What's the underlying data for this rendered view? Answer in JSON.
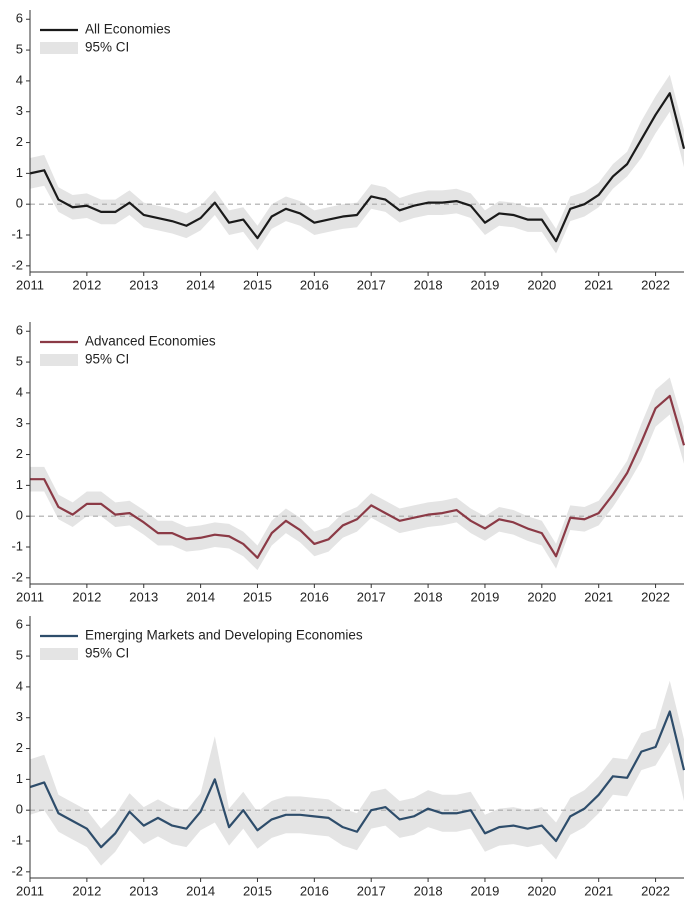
{
  "chart_data": [
    {
      "type": "line",
      "x": [
        2011,
        2011.25,
        2011.5,
        2011.75,
        2012,
        2012.25,
        2012.5,
        2012.75,
        2013,
        2013.25,
        2013.5,
        2013.75,
        2014,
        2014.25,
        2014.5,
        2014.75,
        2015,
        2015.25,
        2015.5,
        2015.75,
        2016,
        2016.25,
        2016.5,
        2016.75,
        2017,
        2017.25,
        2017.5,
        2017.75,
        2018,
        2018.25,
        2018.5,
        2018.75,
        2019,
        2019.25,
        2019.5,
        2019.75,
        2020,
        2020.25,
        2020.5,
        2020.75,
        2021,
        2021.25,
        2021.5,
        2021.75,
        2022,
        2022.25,
        2022.5
      ],
      "xlim": [
        2011,
        2022.5
      ],
      "xticks": [
        2011,
        2012,
        2013,
        2014,
        2015,
        2016,
        2017,
        2018,
        2019,
        2020,
        2021,
        2022
      ],
      "ylim": [
        -2.2,
        6.3
      ],
      "yticks": [
        -2,
        -1,
        0,
        1,
        2,
        3,
        4,
        5,
        6
      ],
      "reference_line": 0,
      "ci_label": "95% CI",
      "ci_color": "#e4e4e4",
      "series": [
        {
          "name": "All Economies",
          "color": "#1a1a1a",
          "values": [
            1.0,
            1.1,
            0.15,
            -0.1,
            -0.05,
            -0.25,
            -0.25,
            0.05,
            -0.35,
            -0.45,
            -0.55,
            -0.7,
            -0.45,
            0.05,
            -0.6,
            -0.5,
            -1.1,
            -0.4,
            -0.15,
            -0.3,
            -0.6,
            -0.5,
            -0.4,
            -0.35,
            0.25,
            0.15,
            -0.2,
            -0.05,
            0.05,
            0.05,
            0.1,
            -0.05,
            -0.6,
            -0.3,
            -0.35,
            -0.5,
            -0.5,
            -1.2,
            -0.15,
            0.0,
            0.3,
            0.9,
            1.3,
            2.1,
            2.9,
            3.6,
            1.8
          ],
          "lower": [
            0.5,
            0.6,
            -0.25,
            -0.5,
            -0.45,
            -0.65,
            -0.65,
            -0.35,
            -0.75,
            -0.85,
            -0.95,
            -1.1,
            -0.85,
            -0.35,
            -1.0,
            -0.9,
            -1.5,
            -0.8,
            -0.55,
            -0.7,
            -1.0,
            -0.9,
            -0.8,
            -0.75,
            -0.15,
            -0.25,
            -0.6,
            -0.45,
            -0.35,
            -0.35,
            -0.3,
            -0.45,
            -1.0,
            -0.7,
            -0.75,
            -0.9,
            -0.9,
            -1.6,
            -0.55,
            -0.4,
            -0.1,
            0.5,
            0.9,
            1.5,
            2.3,
            3.0,
            1.2
          ],
          "upper": [
            1.5,
            1.6,
            0.55,
            0.3,
            0.35,
            0.15,
            0.15,
            0.45,
            0.05,
            -0.05,
            -0.15,
            -0.3,
            -0.05,
            0.45,
            -0.2,
            -0.1,
            -0.7,
            0.0,
            0.25,
            0.1,
            -0.2,
            -0.1,
            0.0,
            0.05,
            0.65,
            0.55,
            0.2,
            0.35,
            0.45,
            0.45,
            0.5,
            0.35,
            -0.2,
            0.1,
            0.05,
            -0.1,
            -0.1,
            -0.8,
            0.25,
            0.4,
            0.7,
            1.3,
            1.7,
            2.7,
            3.5,
            4.2,
            2.4
          ]
        }
      ]
    },
    {
      "type": "line",
      "x": [
        2011,
        2011.25,
        2011.5,
        2011.75,
        2012,
        2012.25,
        2012.5,
        2012.75,
        2013,
        2013.25,
        2013.5,
        2013.75,
        2014,
        2014.25,
        2014.5,
        2014.75,
        2015,
        2015.25,
        2015.5,
        2015.75,
        2016,
        2016.25,
        2016.5,
        2016.75,
        2017,
        2017.25,
        2017.5,
        2017.75,
        2018,
        2018.25,
        2018.5,
        2018.75,
        2019,
        2019.25,
        2019.5,
        2019.75,
        2020,
        2020.25,
        2020.5,
        2020.75,
        2021,
        2021.25,
        2021.5,
        2021.75,
        2022,
        2022.25,
        2022.5
      ],
      "xlim": [
        2011,
        2022.5
      ],
      "xticks": [
        2011,
        2012,
        2013,
        2014,
        2015,
        2016,
        2017,
        2018,
        2019,
        2020,
        2021,
        2022
      ],
      "ylim": [
        -2.2,
        6.3
      ],
      "yticks": [
        -2,
        -1,
        0,
        1,
        2,
        3,
        4,
        5,
        6
      ],
      "reference_line": 0,
      "ci_label": "95% CI",
      "ci_color": "#e4e4e4",
      "series": [
        {
          "name": "Advanced Economies",
          "color": "#8b3a46",
          "values": [
            1.2,
            1.2,
            0.3,
            0.05,
            0.4,
            0.4,
            0.05,
            0.1,
            -0.2,
            -0.55,
            -0.55,
            -0.75,
            -0.7,
            -0.6,
            -0.65,
            -0.9,
            -1.35,
            -0.55,
            -0.15,
            -0.45,
            -0.9,
            -0.75,
            -0.3,
            -0.1,
            0.35,
            0.1,
            -0.15,
            -0.05,
            0.05,
            0.1,
            0.2,
            -0.15,
            -0.4,
            -0.1,
            -0.2,
            -0.4,
            -0.55,
            -1.3,
            -0.05,
            -0.1,
            0.1,
            0.7,
            1.4,
            2.4,
            3.5,
            3.9,
            2.3
          ],
          "lower": [
            0.8,
            0.8,
            -0.1,
            -0.35,
            0.0,
            0.0,
            -0.35,
            -0.3,
            -0.6,
            -0.95,
            -0.95,
            -1.15,
            -1.1,
            -1.0,
            -1.05,
            -1.3,
            -1.75,
            -0.95,
            -0.55,
            -0.85,
            -1.3,
            -1.15,
            -0.7,
            -0.5,
            -0.05,
            -0.3,
            -0.55,
            -0.45,
            -0.35,
            -0.3,
            -0.2,
            -0.55,
            -0.8,
            -0.5,
            -0.6,
            -0.8,
            -0.95,
            -1.7,
            -0.45,
            -0.5,
            -0.3,
            0.3,
            1.0,
            1.8,
            2.9,
            3.3,
            1.7
          ],
          "upper": [
            1.6,
            1.6,
            0.7,
            0.45,
            0.8,
            0.8,
            0.45,
            0.5,
            0.2,
            -0.15,
            -0.15,
            -0.35,
            -0.3,
            -0.2,
            -0.25,
            -0.5,
            -0.95,
            -0.15,
            0.25,
            -0.05,
            -0.5,
            -0.35,
            0.1,
            0.3,
            0.75,
            0.5,
            0.25,
            0.35,
            0.45,
            0.5,
            0.6,
            0.25,
            0.0,
            0.3,
            0.2,
            0.0,
            -0.15,
            -0.9,
            0.35,
            0.3,
            0.5,
            1.1,
            1.8,
            3.0,
            4.1,
            4.5,
            2.9
          ]
        }
      ]
    },
    {
      "type": "line",
      "x": [
        2011,
        2011.25,
        2011.5,
        2011.75,
        2012,
        2012.25,
        2012.5,
        2012.75,
        2013,
        2013.25,
        2013.5,
        2013.75,
        2014,
        2014.25,
        2014.5,
        2014.75,
        2015,
        2015.25,
        2015.5,
        2015.75,
        2016,
        2016.25,
        2016.5,
        2016.75,
        2017,
        2017.25,
        2017.5,
        2017.75,
        2018,
        2018.25,
        2018.5,
        2018.75,
        2019,
        2019.25,
        2019.5,
        2019.75,
        2020,
        2020.25,
        2020.5,
        2020.75,
        2021,
        2021.25,
        2021.5,
        2021.75,
        2022,
        2022.25,
        2022.5
      ],
      "xlim": [
        2011,
        2022.5
      ],
      "xticks": [
        2011,
        2012,
        2013,
        2014,
        2015,
        2016,
        2017,
        2018,
        2019,
        2020,
        2021,
        2022
      ],
      "ylim": [
        -2.2,
        6.3
      ],
      "yticks": [
        -2,
        -1,
        0,
        1,
        2,
        3,
        4,
        5,
        6
      ],
      "reference_line": 0,
      "ci_label": "95% CI",
      "ci_color": "#e4e4e4",
      "series": [
        {
          "name": "Emerging Markets and Developing Economies",
          "color": "#2e4d6b",
          "values": [
            0.75,
            0.9,
            -0.1,
            -0.35,
            -0.6,
            -1.2,
            -0.75,
            -0.05,
            -0.5,
            -0.25,
            -0.5,
            -0.6,
            -0.05,
            1.0,
            -0.55,
            0.0,
            -0.65,
            -0.3,
            -0.15,
            -0.15,
            -0.2,
            -0.25,
            -0.55,
            -0.7,
            0.0,
            0.1,
            -0.3,
            -0.2,
            0.05,
            -0.1,
            -0.1,
            0.0,
            -0.75,
            -0.55,
            -0.5,
            -0.6,
            -0.5,
            -1.0,
            -0.2,
            0.05,
            0.5,
            1.1,
            1.05,
            1.9,
            2.05,
            3.2,
            1.3
          ],
          "lower": [
            -0.15,
            0.0,
            -0.7,
            -0.95,
            -1.2,
            -1.8,
            -1.35,
            -0.65,
            -1.1,
            -0.85,
            -1.1,
            -1.2,
            -0.65,
            -0.4,
            -1.15,
            -0.6,
            -1.25,
            -0.9,
            -0.75,
            -0.75,
            -0.8,
            -0.85,
            -1.15,
            -1.3,
            -0.6,
            -0.5,
            -0.9,
            -0.8,
            -0.55,
            -0.7,
            -0.7,
            -0.6,
            -1.35,
            -1.15,
            -1.1,
            -1.2,
            -1.1,
            -1.6,
            -0.8,
            -0.55,
            -0.1,
            0.5,
            0.45,
            1.3,
            1.45,
            2.2,
            0.3
          ],
          "upper": [
            1.65,
            1.8,
            0.5,
            0.25,
            0.0,
            -0.6,
            -0.15,
            0.55,
            0.1,
            0.35,
            0.1,
            0.0,
            0.55,
            2.4,
            0.05,
            0.6,
            -0.05,
            0.3,
            0.45,
            0.45,
            0.4,
            0.35,
            0.05,
            -0.1,
            0.6,
            0.7,
            0.3,
            0.4,
            0.65,
            0.5,
            0.5,
            0.6,
            -0.15,
            0.05,
            0.1,
            0.0,
            0.1,
            -0.4,
            0.4,
            0.65,
            1.1,
            1.7,
            1.65,
            2.5,
            2.65,
            4.2,
            2.3
          ]
        }
      ]
    }
  ]
}
